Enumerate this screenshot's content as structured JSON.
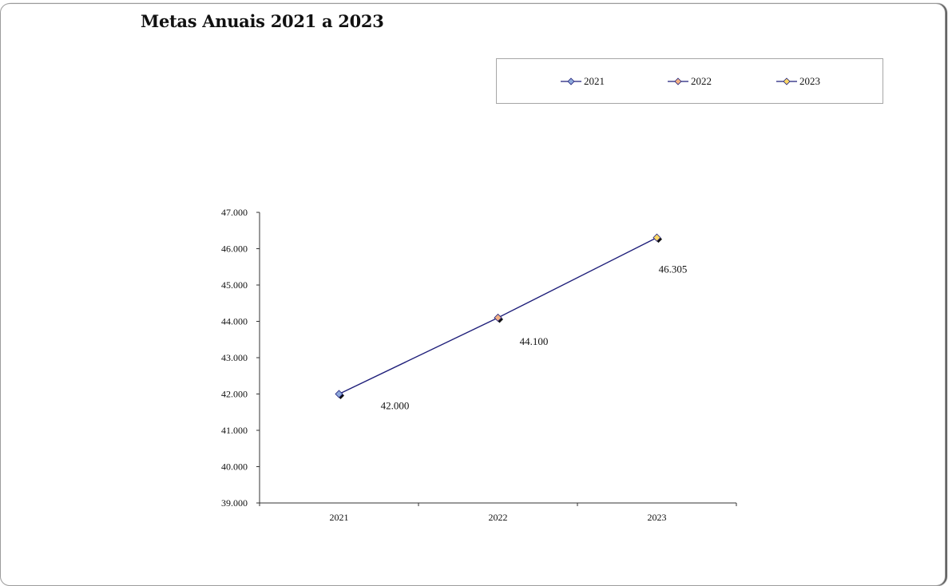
{
  "chart_data": {
    "type": "line",
    "title": "Metas Anuais 2021 a 2023",
    "categories": [
      "2021",
      "2022",
      "2023"
    ],
    "values": [
      42000,
      44100,
      46305
    ],
    "data_labels": [
      "42.000",
      "44.100",
      "46.305"
    ],
    "ylim": [
      39000,
      47000
    ],
    "yticks": [
      39000,
      40000,
      41000,
      42000,
      43000,
      44000,
      45000,
      46000,
      47000
    ],
    "ytick_labels": [
      "39.000",
      "40.000",
      "41.000",
      "42.000",
      "43.000",
      "44.000",
      "45.000",
      "46.000",
      "47.000"
    ],
    "xlabel": "",
    "ylabel": "",
    "grid": false,
    "legend": {
      "placement": "top-right",
      "entries": [
        {
          "label": "2021",
          "color": "#8EA9DB"
        },
        {
          "label": "2022",
          "color": "#F4B183"
        },
        {
          "label": "2023",
          "color": "#FFD966"
        }
      ]
    },
    "line_color": "#1F1F7A"
  }
}
